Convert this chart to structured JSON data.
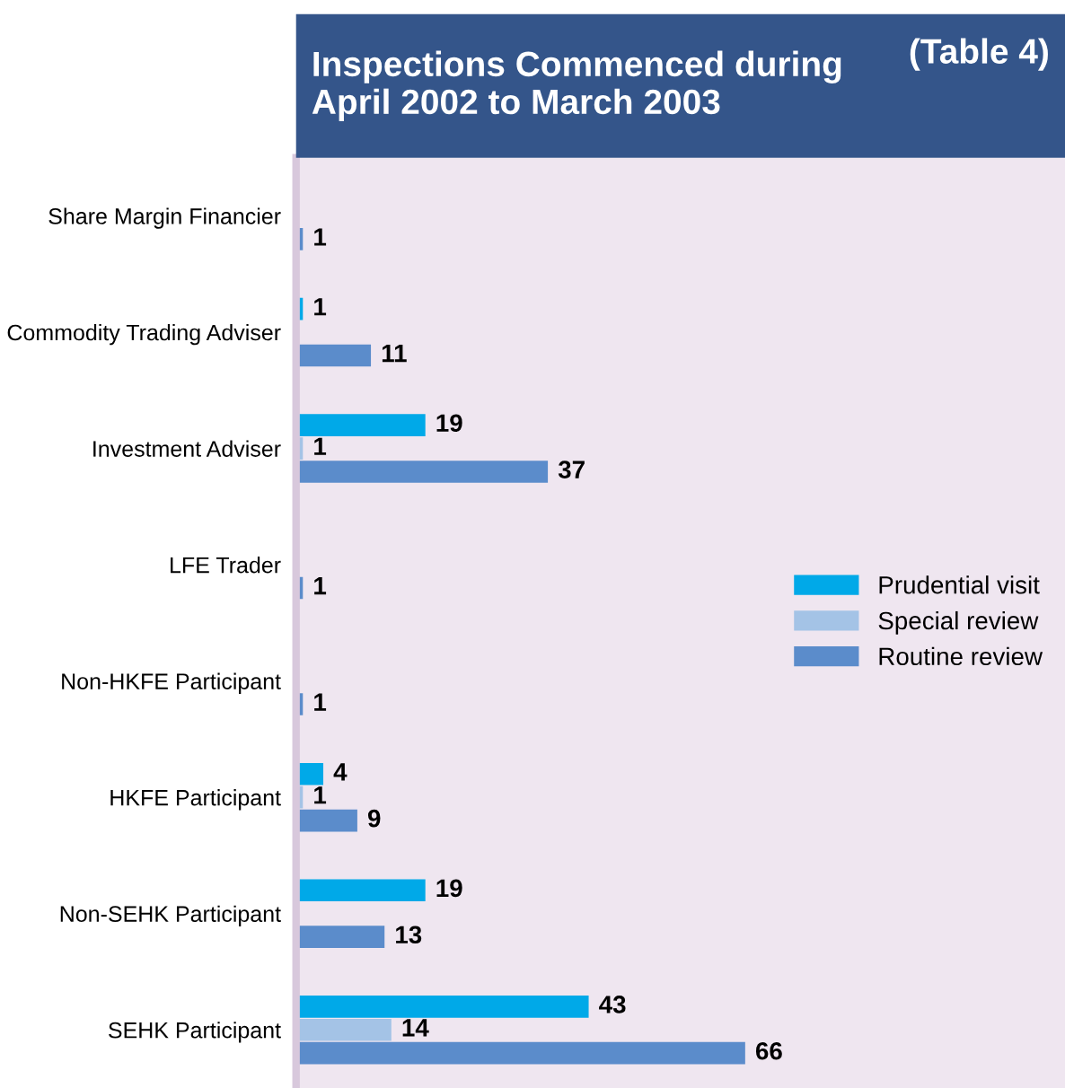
{
  "chart_data": {
    "type": "bar",
    "orientation": "horizontal",
    "title": "Inspections Commenced during\nApril 2002 to March 2003",
    "annotations": [
      "(Table 4)"
    ],
    "categories": [
      "Share Margin Financier",
      "Commodity Trading Adviser",
      "Investment Adviser",
      "LFE Trader",
      "Non-HKFE Participant",
      "HKFE Participant",
      "Non-SEHK Participant",
      "SEHK Participant"
    ],
    "series": [
      {
        "name": "Prudential visit",
        "color": "#00a9e8",
        "values": [
          null,
          1,
          19,
          null,
          null,
          4,
          19,
          43
        ]
      },
      {
        "name": "Special review",
        "color": "#a4c3e6",
        "values": [
          null,
          null,
          1,
          null,
          null,
          1,
          null,
          14
        ]
      },
      {
        "name": "Routine review",
        "color": "#5b8ccb",
        "values": [
          1,
          11,
          37,
          1,
          1,
          9,
          13,
          66
        ]
      }
    ],
    "xlim": [
      0,
      113
    ],
    "tick_labels": "y",
    "data_labels": true,
    "legend": "right",
    "grid": false
  }
}
